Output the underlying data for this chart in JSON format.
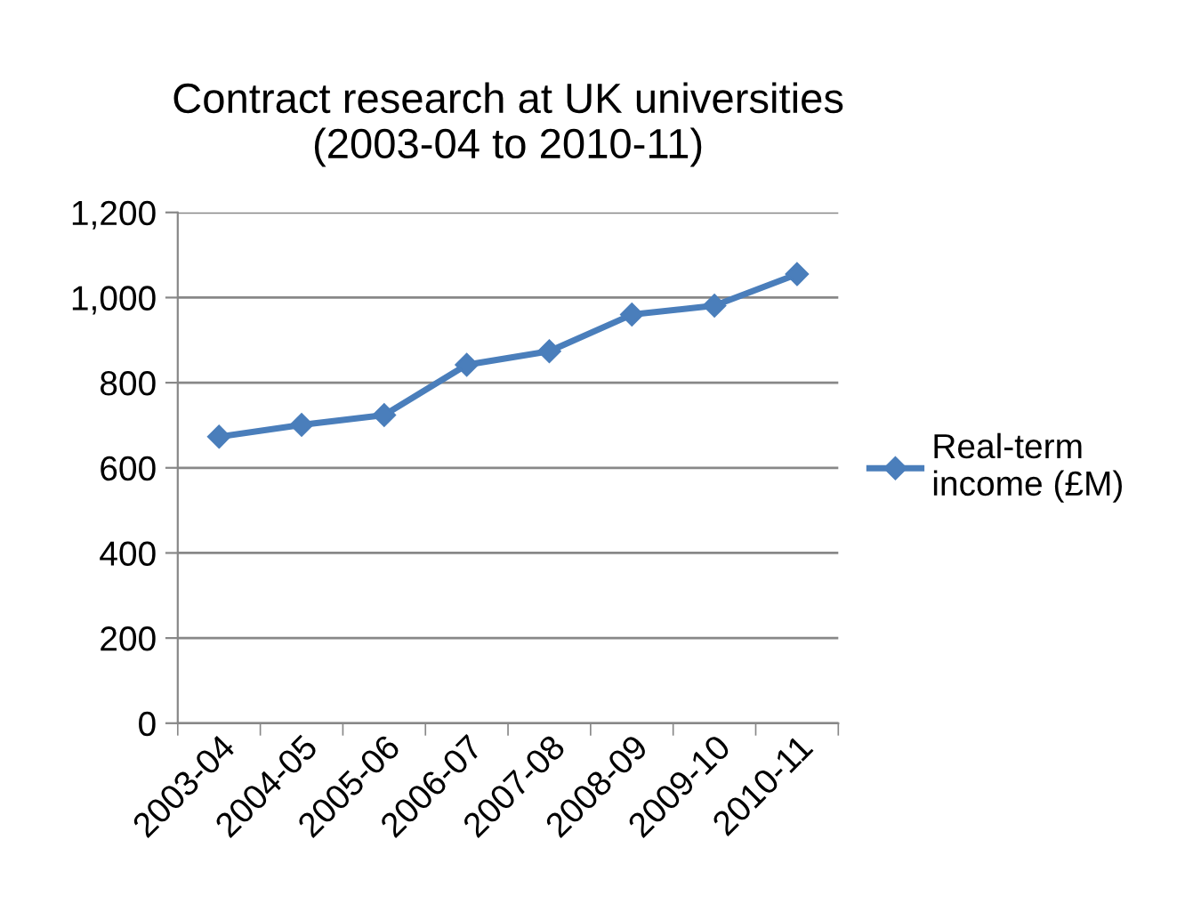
{
  "chart_data": {
    "type": "line",
    "title": "Contract research at UK universities\n(2003-04 to 2010-11)",
    "categories": [
      "2003-04",
      "2004-05",
      "2005-06",
      "2006-07",
      "2007-08",
      "2008-09",
      "2009-10",
      "2010-11"
    ],
    "series": [
      {
        "name": "Real-term\nincome (£M)",
        "color": "#4a7ebb",
        "values": [
          673,
          701,
          724,
          842,
          874,
          960,
          981,
          1055
        ]
      }
    ],
    "ylim": [
      0,
      1200
    ],
    "yticks": [
      {
        "value": 0,
        "label": "0"
      },
      {
        "value": 200,
        "label": "200"
      },
      {
        "value": 400,
        "label": "400"
      },
      {
        "value": 600,
        "label": "600"
      },
      {
        "value": 800,
        "label": "800"
      },
      {
        "value": 1000,
        "label": "1,000"
      },
      {
        "value": 1200,
        "label": "1,200"
      }
    ],
    "grid": "y",
    "legend": "right",
    "marker": "diamond",
    "line_style": "solid"
  }
}
